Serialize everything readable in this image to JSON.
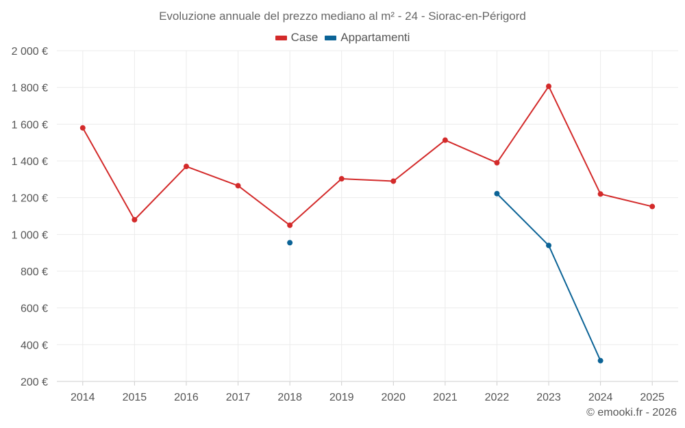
{
  "chart_data": {
    "type": "line",
    "title": "Evoluzione annuale del prezzo mediano al m² - 24 - Siorac-en-Périgord",
    "categories": [
      "2014",
      "2015",
      "2016",
      "2017",
      "2018",
      "2019",
      "2020",
      "2021",
      "2022",
      "2023",
      "2024",
      "2025"
    ],
    "series": [
      {
        "name": "Case",
        "color": "#d32a2a",
        "values": [
          1580,
          1080,
          1370,
          1265,
          1050,
          1303,
          1290,
          1513,
          1390,
          1806,
          1220,
          1152
        ]
      },
      {
        "name": "Appartamenti",
        "color": "#0b6396",
        "values": [
          null,
          null,
          null,
          null,
          955,
          null,
          null,
          null,
          1222,
          940,
          313,
          null
        ]
      }
    ],
    "yticks": [
      {
        "value": 200,
        "label": "200 €"
      },
      {
        "value": 400,
        "label": "400 €"
      },
      {
        "value": 600,
        "label": "600 €"
      },
      {
        "value": 800,
        "label": "800 €"
      },
      {
        "value": 1000,
        "label": "1 000 €"
      },
      {
        "value": 1200,
        "label": "1 200 €"
      },
      {
        "value": 1400,
        "label": "1 400 €"
      },
      {
        "value": 1600,
        "label": "1 600 €"
      },
      {
        "value": 1800,
        "label": "1 800 €"
      },
      {
        "value": 2000,
        "label": "2 000 €"
      }
    ],
    "ylim": [
      200,
      2000
    ],
    "xlabel": "",
    "ylabel": "",
    "grid": true,
    "legend_position": "top-center"
  },
  "credit": "© emooki.fr - 2026"
}
